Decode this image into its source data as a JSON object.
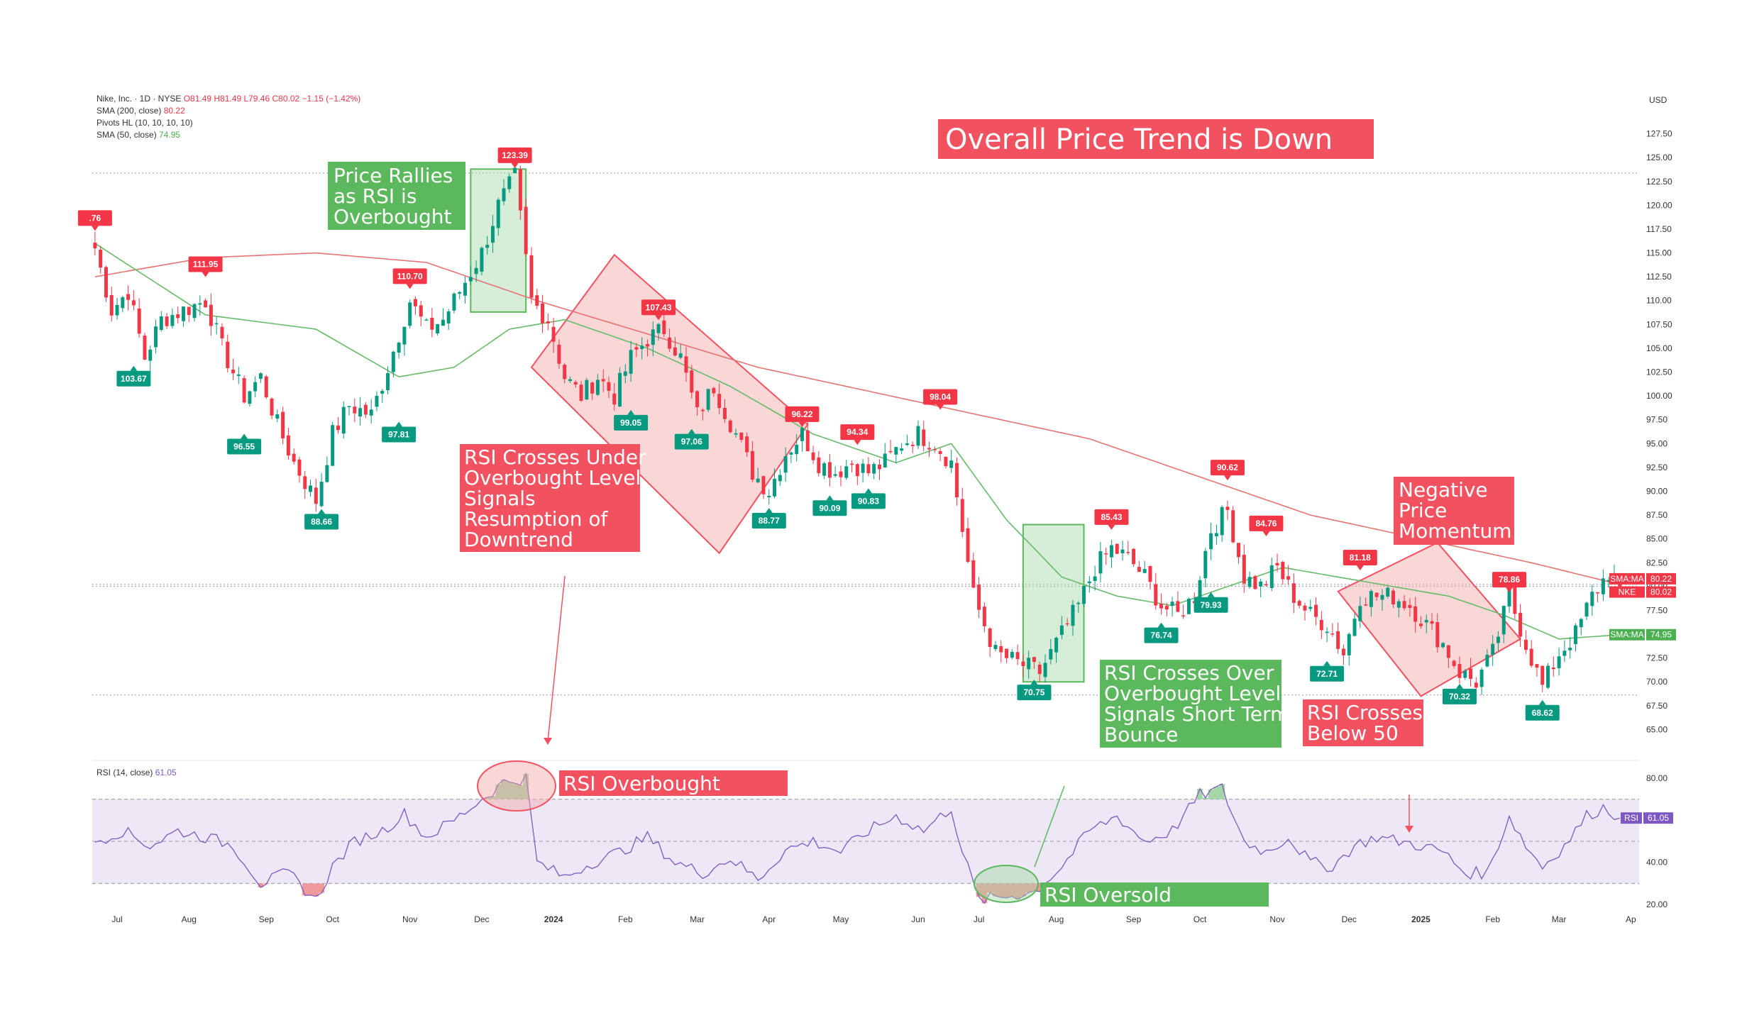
{
  "chart_data": {
    "type": "candlestick",
    "symbol_line": {
      "name": "Nike, Inc. · 1D · NYSE",
      "ohlc": "O81.49 H81.49 L79.46 C80.02 −1.15 (−1.42%)"
    },
    "indicators": [
      {
        "label": "SMA (200, close)",
        "value": "80.22"
      },
      {
        "label": "Pivots HL (10, 10, 10, 10)",
        "value": ""
      },
      {
        "label": "SMA (50, close)",
        "value": "74.95"
      }
    ],
    "currency": "USD",
    "price_axis": {
      "ylim": [
        62.5,
        130
      ],
      "ticks": [
        "127.50",
        "125.00",
        "122.50",
        "120.00",
        "117.50",
        "115.00",
        "112.50",
        "110.00",
        "107.50",
        "105.00",
        "102.50",
        "100.00",
        "97.50",
        "95.00",
        "92.50",
        "90.00",
        "87.50",
        "85.00",
        "82.50",
        "80.00",
        "77.50",
        "75.00",
        "72.50",
        "70.00",
        "67.50",
        "65.00"
      ]
    },
    "time_axis": {
      "ticks": [
        "Jul",
        "Aug",
        "Sep",
        "Oct",
        "Nov",
        "Dec",
        "2024",
        "Feb",
        "Mar",
        "Apr",
        "May",
        "Jun",
        "Jul",
        "Aug",
        "Sep",
        "Oct",
        "Nov",
        "Dec",
        "2025",
        "Feb",
        "Mar",
        "Ap"
      ],
      "tick_index": [
        4,
        17,
        31,
        43,
        57,
        70,
        83,
        96,
        109,
        122,
        135,
        149,
        160,
        174,
        188,
        200,
        214,
        227,
        240,
        253,
        265,
        278
      ],
      "bars_total": 280
    },
    "close_anchors": [
      [
        0,
        115.5
      ],
      [
        3,
        109
      ],
      [
        6,
        111
      ],
      [
        9,
        104
      ],
      [
        12,
        108
      ],
      [
        16,
        109
      ],
      [
        20,
        110
      ],
      [
        23,
        105
      ],
      [
        27,
        100
      ],
      [
        30,
        102
      ],
      [
        33,
        97
      ],
      [
        36,
        93
      ],
      [
        40,
        89
      ],
      [
        43,
        96
      ],
      [
        46,
        99
      ],
      [
        50,
        98
      ],
      [
        53,
        103
      ],
      [
        57,
        110
      ],
      [
        60,
        107
      ],
      [
        63,
        108
      ],
      [
        66,
        111
      ],
      [
        70,
        115
      ],
      [
        73,
        120
      ],
      [
        76,
        123
      ],
      [
        79,
        110
      ],
      [
        82,
        108
      ],
      [
        85,
        102
      ],
      [
        88,
        100
      ],
      [
        91,
        102
      ],
      [
        94,
        100
      ],
      [
        97,
        104
      ],
      [
        100,
        106
      ],
      [
        103,
        107
      ],
      [
        106,
        104
      ],
      [
        109,
        98
      ],
      [
        112,
        101
      ],
      [
        116,
        96
      ],
      [
        119,
        92
      ],
      [
        122,
        90
      ],
      [
        125,
        94
      ],
      [
        128,
        96
      ],
      [
        131,
        93
      ],
      [
        134,
        92
      ],
      [
        137,
        93
      ],
      [
        140,
        92
      ],
      [
        143,
        93
      ],
      [
        146,
        95
      ],
      [
        149,
        96
      ],
      [
        152,
        95
      ],
      [
        155,
        93
      ],
      [
        159,
        79
      ],
      [
        163,
        73
      ],
      [
        167,
        72
      ],
      [
        171,
        71
      ],
      [
        175,
        75
      ],
      [
        178,
        78
      ],
      [
        181,
        82
      ],
      [
        184,
        84
      ],
      [
        187,
        83
      ],
      [
        190,
        81
      ],
      [
        193,
        78
      ],
      [
        196,
        77
      ],
      [
        199,
        79
      ],
      [
        202,
        86
      ],
      [
        205,
        88
      ],
      [
        208,
        81
      ],
      [
        211,
        80
      ],
      [
        214,
        82
      ],
      [
        217,
        79
      ],
      [
        220,
        77
      ],
      [
        223,
        76
      ],
      [
        226,
        73
      ],
      [
        229,
        79
      ],
      [
        232,
        79
      ],
      [
        235,
        79
      ],
      [
        238,
        78
      ],
      [
        241,
        76
      ],
      [
        244,
        74
      ],
      [
        247,
        71
      ],
      [
        250,
        70
      ],
      [
        253,
        73
      ],
      [
        256,
        79
      ],
      [
        259,
        74
      ],
      [
        262,
        69.5
      ],
      [
        265,
        73
      ],
      [
        268,
        75
      ],
      [
        271,
        79
      ],
      [
        274,
        81.5
      ],
      [
        276,
        80.02
      ]
    ],
    "sma200_anchors": [
      [
        0,
        112.5
      ],
      [
        20,
        114.5
      ],
      [
        40,
        115
      ],
      [
        60,
        114
      ],
      [
        80,
        110
      ],
      [
        100,
        106.5
      ],
      [
        120,
        103
      ],
      [
        140,
        100.5
      ],
      [
        160,
        98
      ],
      [
        180,
        95.5
      ],
      [
        200,
        91.5
      ],
      [
        220,
        87.5
      ],
      [
        240,
        85
      ],
      [
        260,
        82.5
      ],
      [
        276,
        80.22
      ]
    ],
    "sma50_anchors": [
      [
        0,
        116
      ],
      [
        20,
        108.5
      ],
      [
        40,
        107
      ],
      [
        55,
        102
      ],
      [
        65,
        103
      ],
      [
        75,
        107
      ],
      [
        85,
        108
      ],
      [
        100,
        105
      ],
      [
        115,
        101
      ],
      [
        130,
        96
      ],
      [
        145,
        93
      ],
      [
        155,
        95
      ],
      [
        165,
        87
      ],
      [
        175,
        81
      ],
      [
        185,
        79
      ],
      [
        195,
        78
      ],
      [
        205,
        80
      ],
      [
        215,
        82
      ],
      [
        230,
        80.5
      ],
      [
        245,
        79
      ],
      [
        255,
        77
      ],
      [
        265,
        74.5
      ],
      [
        276,
        74.95
      ]
    ],
    "rsi_anchors": [
      [
        0,
        50
      ],
      [
        5,
        55
      ],
      [
        10,
        48
      ],
      [
        15,
        55
      ],
      [
        20,
        52
      ],
      [
        25,
        48
      ],
      [
        30,
        30
      ],
      [
        35,
        35
      ],
      [
        40,
        22
      ],
      [
        43,
        38
      ],
      [
        47,
        50
      ],
      [
        52,
        55
      ],
      [
        56,
        63
      ],
      [
        60,
        52
      ],
      [
        65,
        60
      ],
      [
        70,
        70
      ],
      [
        74,
        78
      ],
      [
        78,
        80
      ],
      [
        80,
        40
      ],
      [
        85,
        33
      ],
      [
        90,
        40
      ],
      [
        95,
        45
      ],
      [
        100,
        52
      ],
      [
        105,
        40
      ],
      [
        110,
        35
      ],
      [
        115,
        42
      ],
      [
        120,
        32
      ],
      [
        125,
        46
      ],
      [
        130,
        50
      ],
      [
        135,
        45
      ],
      [
        140,
        55
      ],
      [
        145,
        62
      ],
      [
        150,
        55
      ],
      [
        155,
        66
      ],
      [
        157,
        45
      ],
      [
        160,
        22
      ],
      [
        165,
        24
      ],
      [
        170,
        26
      ],
      [
        175,
        38
      ],
      [
        180,
        55
      ],
      [
        185,
        62
      ],
      [
        190,
        50
      ],
      [
        195,
        55
      ],
      [
        200,
        72
      ],
      [
        204,
        75
      ],
      [
        208,
        50
      ],
      [
        212,
        45
      ],
      [
        216,
        52
      ],
      [
        220,
        40
      ],
      [
        224,
        38
      ],
      [
        228,
        48
      ],
      [
        232,
        52
      ],
      [
        236,
        50
      ],
      [
        240,
        48
      ],
      [
        244,
        45
      ],
      [
        248,
        35
      ],
      [
        252,
        35
      ],
      [
        256,
        62
      ],
      [
        259,
        48
      ],
      [
        262,
        38
      ],
      [
        266,
        48
      ],
      [
        270,
        62
      ],
      [
        273,
        66
      ],
      [
        276,
        61.05
      ]
    ],
    "rsi_panel": {
      "title": "RSI (14, close)",
      "value": "61.05",
      "ylim": [
        15,
        85
      ],
      "ticks": [
        "80.00",
        "40.00",
        "20.00"
      ],
      "overbought": 70,
      "middle": 50,
      "oversold": 30
    },
    "pivots_high": [
      {
        "label": "⁠.76",
        "bar": 0,
        "price": 116.8
      },
      {
        "label": "111.95",
        "bar": 20,
        "price": 111.95
      },
      {
        "label": "110.70",
        "bar": 57,
        "price": 110.7
      },
      {
        "label": "123.39",
        "bar": 76,
        "price": 123.39
      },
      {
        "label": "107.43",
        "bar": 102,
        "price": 107.43
      },
      {
        "label": "96.22",
        "bar": 128,
        "price": 96.22
      },
      {
        "label": "94.34",
        "bar": 138,
        "price": 94.34
      },
      {
        "label": "98.04",
        "bar": 153,
        "price": 98.04
      },
      {
        "label": "85.43",
        "bar": 184,
        "price": 85.43
      },
      {
        "label": "90.62",
        "bar": 205,
        "price": 90.62
      },
      {
        "label": "84.76",
        "bar": 212,
        "price": 84.76
      },
      {
        "label": "81.18",
        "bar": 229,
        "price": 81.18
      },
      {
        "label": "78.86",
        "bar": 256,
        "price": 78.86
      }
    ],
    "pivots_low": [
      {
        "label": "103.67",
        "bar": 7,
        "price": 103.67
      },
      {
        "label": "96.55",
        "bar": 27,
        "price": 96.55
      },
      {
        "label": "88.66",
        "bar": 41,
        "price": 88.66
      },
      {
        "label": "97.81",
        "bar": 55,
        "price": 97.81
      },
      {
        "label": "99.05",
        "bar": 97,
        "price": 99.05
      },
      {
        "label": "97.06",
        "bar": 108,
        "price": 97.06
      },
      {
        "label": "88.77",
        "bar": 122,
        "price": 88.77
      },
      {
        "label": "90.09",
        "bar": 133,
        "price": 90.09
      },
      {
        "label": "90.83",
        "bar": 140,
        "price": 90.83
      },
      {
        "label": "70.75",
        "bar": 170,
        "price": 70.75
      },
      {
        "label": "76.74",
        "bar": 193,
        "price": 76.74
      },
      {
        "label": "79.93",
        "bar": 202,
        "price": 79.93
      },
      {
        "label": "72.71",
        "bar": 223,
        "price": 72.71
      },
      {
        "label": "70.32",
        "bar": 247,
        "price": 70.32
      },
      {
        "label": "68.62",
        "bar": 262,
        "price": 68.62
      }
    ],
    "price_tags": [
      {
        "label": "SMA:MA",
        "value": "80.22",
        "price": 80.22,
        "color": "#f23645"
      },
      {
        "label": "NKE",
        "value": "80.02",
        "price": 80.02,
        "color": "#f23645"
      },
      {
        "label": "SMA:MA",
        "value": "74.95",
        "price": 74.95,
        "color": "#4caf50"
      }
    ],
    "rsi_tag": {
      "label": "RSI",
      "value": "61.05"
    },
    "dotted_levels": [
      123.39,
      80.22,
      80.02,
      68.62
    ],
    "colors": {
      "up": "#089981",
      "down": "#f23645",
      "sma200": "#e57373",
      "sma50": "#66bb6a",
      "rsi_line": "#7e57c2",
      "rsi_band": "#ede7f6",
      "annotation_red": "#f25260",
      "annotation_green": "#5cb85c"
    }
  },
  "annotations": {
    "title": "Overall Price Trend is Down",
    "price_rallies": [
      "Price Rallies",
      "as RSI is",
      "Overbought"
    ],
    "rsi_crosses_under": [
      "RSI Crosses Under",
      "Overbought Level",
      "Signals",
      "Resumption of",
      "Downtrend"
    ],
    "rsi_crosses_over": [
      "RSI Crosses Over",
      "Overbought Level",
      "Signals Short Term",
      "Bounce"
    ],
    "negative_momentum": [
      "Negative",
      "Price",
      "Momentum"
    ],
    "rsi_crosses_below": [
      "RSI Crosses",
      "Below 50"
    ],
    "rsi_overbought": "RSI Overbought",
    "rsi_oversold": "RSI Oversold"
  }
}
